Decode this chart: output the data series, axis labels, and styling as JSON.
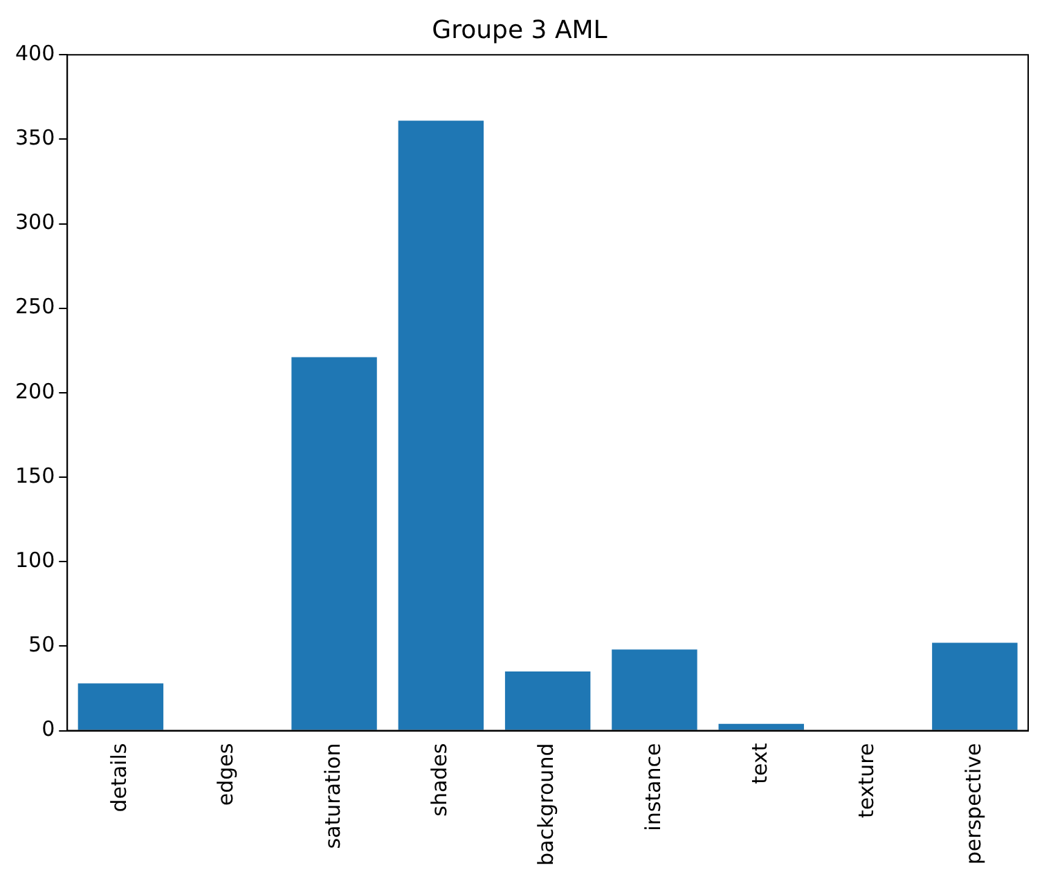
{
  "chart_data": {
    "type": "bar",
    "title": "Groupe 3 AML",
    "categories": [
      "details",
      "edges",
      "saturation",
      "shades",
      "background",
      "instance",
      "text",
      "texture",
      "perspective"
    ],
    "values": [
      28,
      0,
      221,
      361,
      35,
      48,
      4,
      0,
      52
    ],
    "color": "#1f77b4",
    "ylim": [
      0,
      400
    ],
    "yticks": [
      0,
      50,
      100,
      150,
      200,
      250,
      300,
      350,
      400
    ],
    "grid": false,
    "legend": false
  }
}
